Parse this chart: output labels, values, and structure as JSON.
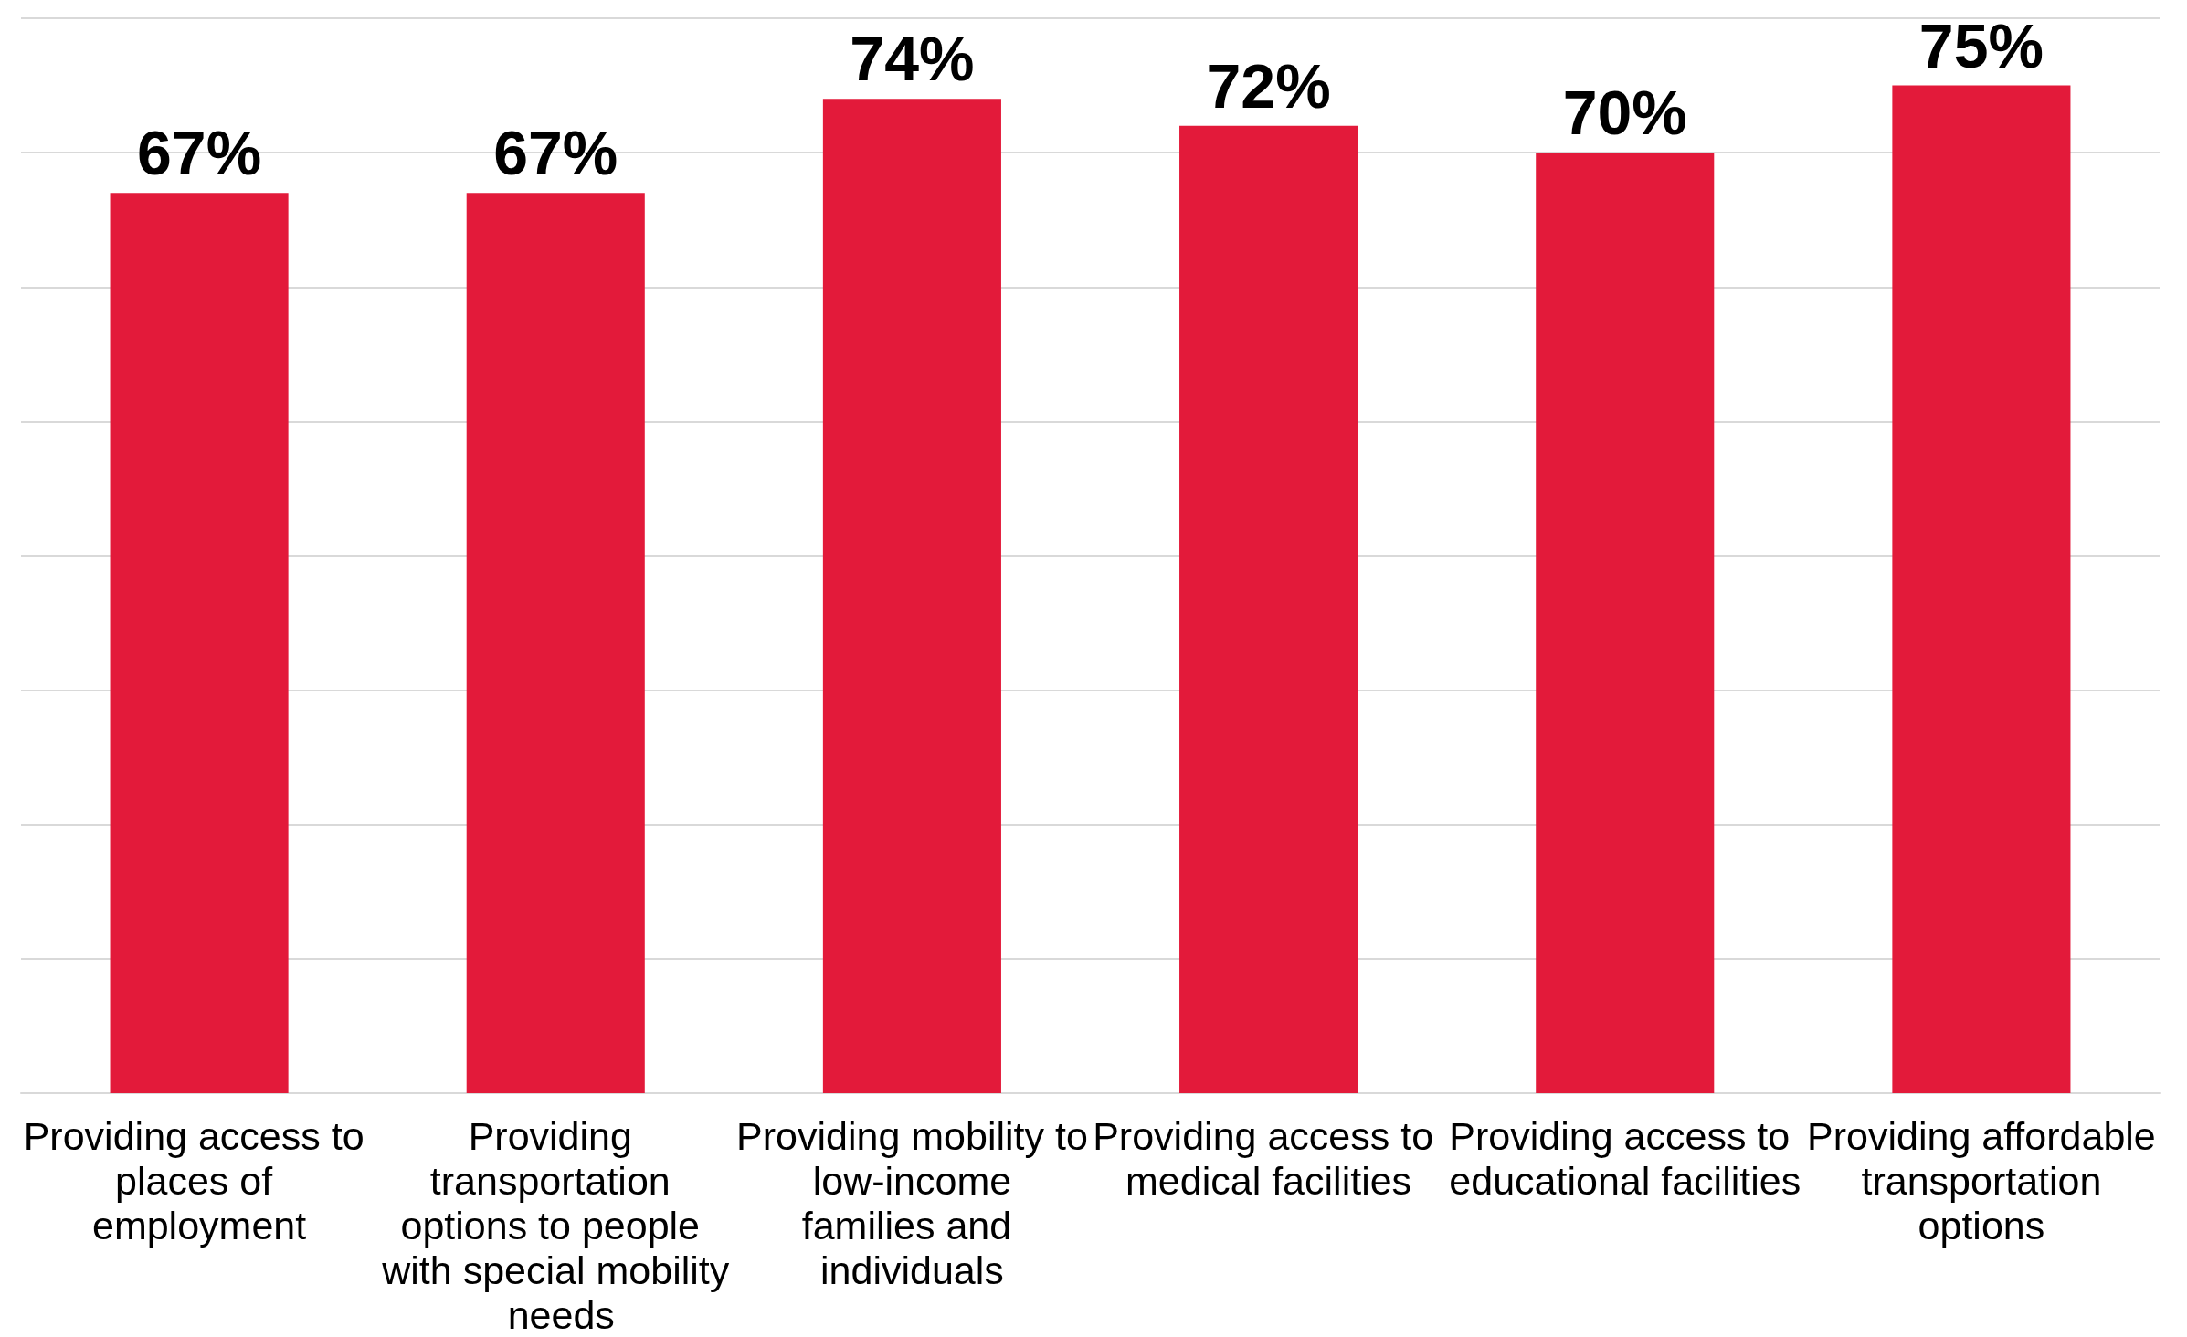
{
  "chart_data": {
    "type": "bar",
    "categories": [
      "Providing access to places of employment",
      "Providing transportation options to people with special mobility needs",
      "Providing mobility to low-income families and individuals",
      "Providing access to medical facilities",
      "Providing access to educational facilities",
      "Providing affordable transportation options"
    ],
    "values": [
      67,
      67,
      74,
      72,
      70,
      75
    ],
    "value_labels": [
      "67%",
      "67%",
      "74%",
      "72%",
      "70%",
      "75%"
    ],
    "color": "#e31a3a",
    "ylim": [
      0,
      80
    ],
    "yticks": [
      {
        "value": 0,
        "label": null
      },
      {
        "value": 10,
        "label": null
      },
      {
        "value": 20,
        "label": null
      },
      {
        "value": 30,
        "label": null
      },
      {
        "value": 40,
        "label": null
      },
      {
        "value": 50,
        "label": null
      },
      {
        "value": 60,
        "label": null
      },
      {
        "value": 70,
        "label": null
      },
      {
        "value": 80,
        "label": null
      }
    ],
    "grid": "y",
    "tick_labels": "x"
  }
}
